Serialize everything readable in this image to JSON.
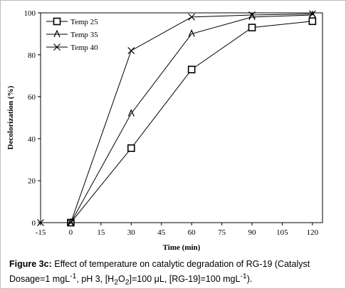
{
  "chart_data": {
    "type": "line",
    "xlabel": "Time (min)",
    "ylabel": "Decolorization (%)",
    "x": [
      -15,
      0,
      30,
      60,
      90,
      120
    ],
    "xlim": [
      -15,
      125
    ],
    "ylim": [
      0,
      100
    ],
    "xticks": [
      -15,
      0,
      15,
      30,
      45,
      60,
      75,
      90,
      105,
      120
    ],
    "yticks": [
      0,
      20,
      40,
      60,
      80,
      100
    ],
    "grid": false,
    "legend_position": "top-left",
    "series": [
      {
        "name": "Temp 25",
        "marker": "square",
        "values": [
          null,
          0,
          35.5,
          73,
          93,
          96
        ]
      },
      {
        "name": "Temp 35",
        "marker": "triangle",
        "values": [
          null,
          0,
          52,
          90,
          98,
          99
        ]
      },
      {
        "name": "Temp 40",
        "marker": "x",
        "values": [
          0,
          0,
          82,
          98,
          99,
          99.5
        ]
      }
    ]
  },
  "caption": {
    "label": "Figure 3c:",
    "text": "Effect of temperature on catalytic degradation of RG-19 (Catalyst Dosage=1 mgL",
    "sup1": "-1",
    "text2": ", pH 3, [H",
    "sub1": "2",
    "text3": "O",
    "sub2": "2",
    "text4": "]=100 μL, [RG-19]=100 mgL",
    "sup2": "-1",
    "text5": ")."
  }
}
